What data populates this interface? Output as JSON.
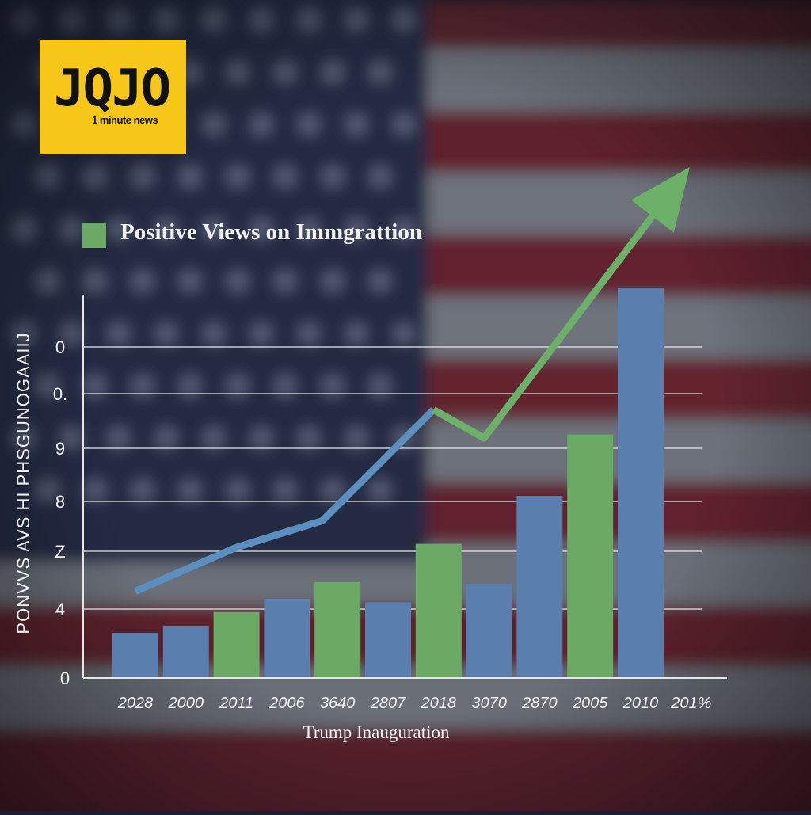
{
  "logo": {
    "word": "JQJO",
    "tagline": "1 minute news"
  },
  "colors": {
    "blue_bar": "#5a7fae",
    "green_bar": "#6aaa64",
    "line_blue": "#5a8fbf",
    "line_green": "#6cb06a",
    "grid": "#e6e6e6",
    "text": "#f2f2f2"
  },
  "chart_data": {
    "type": "bar",
    "legend": [
      "Positive Views on Immgrattion"
    ],
    "xlabel": "Trump Inauguration",
    "ylabel": "PONVVS AVS HI PHSGUNOGAAIIJ",
    "yticks": [
      "0",
      "4",
      "Z",
      "8",
      "9",
      "0.",
      "0"
    ],
    "categories": [
      "2028",
      "2000",
      "2011",
      "2006",
      "3640",
      "2807",
      "2018",
      "3070",
      "2870",
      "2005",
      "2010",
      "201%"
    ],
    "values": [
      0.78,
      0.89,
      1.14,
      1.37,
      1.66,
      1.31,
      2.32,
      1.63,
      3.15,
      4.21,
      6.75,
      null
    ],
    "bar_colors": [
      "blue",
      "blue",
      "green",
      "blue",
      "green",
      "blue",
      "green",
      "blue",
      "blue",
      "green",
      "blue",
      null
    ],
    "trend_line": {
      "blue_segment": [
        [
          0,
          1.5
        ],
        [
          2,
          2.26
        ],
        [
          3.7,
          2.72
        ],
        [
          5.9,
          4.64
        ]
      ],
      "green_segment": [
        [
          5.9,
          4.64
        ],
        [
          6.9,
          4.15
        ],
        [
          10.8,
          8.64
        ]
      ],
      "arrow": true
    },
    "ylim": [
      0,
      7
    ],
    "grid": true,
    "legend_position": "top-left"
  }
}
